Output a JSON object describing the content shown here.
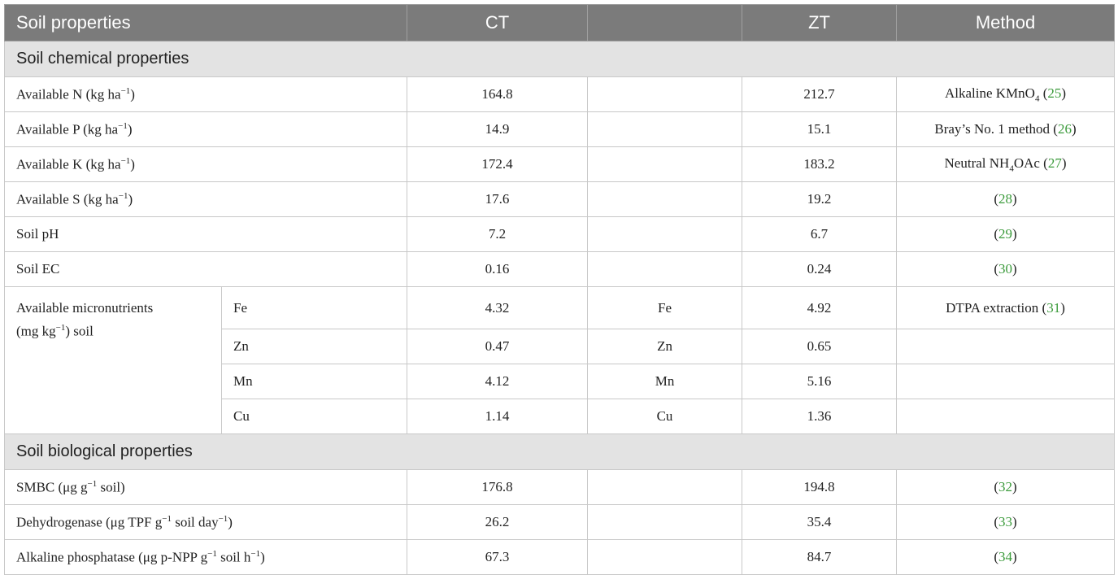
{
  "header": {
    "columns": [
      "Soil properties",
      "CT",
      "ZT",
      "Method"
    ]
  },
  "sections": [
    {
      "title": "Soil chemical properties",
      "rows": [
        {
          "property": [
            "Available N (kg ha",
            {
              "sup": "−1"
            },
            ")"
          ],
          "ct": 164.8,
          "zt": 212.7,
          "method": [
            "Alkaline KMnO",
            {
              "sub": "4"
            },
            " (",
            {
              "ref": "25"
            },
            ")"
          ]
        },
        {
          "property": [
            "Available P (kg ha",
            {
              "sup": "−1"
            },
            ")"
          ],
          "ct": 14.9,
          "zt": 15.1,
          "method": [
            "Bray’s No. 1 method (",
            {
              "ref": "26"
            },
            ")"
          ]
        },
        {
          "property": [
            "Available K (kg ha",
            {
              "sup": "−1"
            },
            ")"
          ],
          "ct": 172.4,
          "zt": 183.2,
          "method": [
            "Neutral NH",
            {
              "sub": "4"
            },
            "OAc (",
            {
              "ref": "27"
            },
            ")"
          ]
        },
        {
          "property": [
            "Available S (kg ha",
            {
              "sup": "−1"
            },
            ")"
          ],
          "ct": 17.6,
          "zt": 19.2,
          "method": [
            "(",
            {
              "ref": "28"
            },
            ")"
          ]
        },
        {
          "property": [
            "Soil pH"
          ],
          "ct": 7.2,
          "zt": 6.7,
          "method": [
            "(",
            {
              "ref": "29"
            },
            ")"
          ]
        },
        {
          "property": [
            "Soil EC"
          ],
          "ct": 0.16,
          "zt": 0.24,
          "method": [
            "(",
            {
              "ref": "30"
            },
            ")"
          ]
        }
      ],
      "micronutrients": {
        "label": [
          [
            "Available micronutrients"
          ],
          [
            "(mg kg",
            {
              "sup": "−1"
            },
            ") soil"
          ]
        ],
        "rows": [
          {
            "element": "Fe",
            "ct": 4.32,
            "zt": 4.92,
            "method": [
              "DTPA extraction (",
              {
                "ref": "31"
              },
              ")"
            ]
          },
          {
            "element": "Zn",
            "ct": 0.47,
            "zt": 0.65
          },
          {
            "element": "Mn",
            "ct": 4.12,
            "zt": 5.16
          },
          {
            "element": "Cu",
            "ct": 1.14,
            "zt": 1.36
          }
        ]
      }
    },
    {
      "title": "Soil biological properties",
      "rows": [
        {
          "property": [
            "SMBC (μg g",
            {
              "sup": "−1"
            },
            " soil)"
          ],
          "ct": 176.8,
          "zt": 194.8,
          "method": [
            "(",
            {
              "ref": "32"
            },
            ")"
          ]
        },
        {
          "property": [
            "Dehydrogenase (μg TPF g",
            {
              "sup": "−1"
            },
            " soil day",
            {
              "sup": "−1"
            },
            ")"
          ],
          "ct": 26.2,
          "zt": 35.4,
          "method": [
            "(",
            {
              "ref": "33"
            },
            ")"
          ]
        },
        {
          "property": [
            "Alkaline phosphatase (μg p-NPP g",
            {
              "sup": "−1"
            },
            " soil h",
            {
              "sup": "−1"
            },
            ")"
          ],
          "ct": 67.3,
          "zt": 84.7,
          "method": [
            "(",
            {
              "ref": "34"
            },
            ")"
          ]
        }
      ]
    }
  ]
}
